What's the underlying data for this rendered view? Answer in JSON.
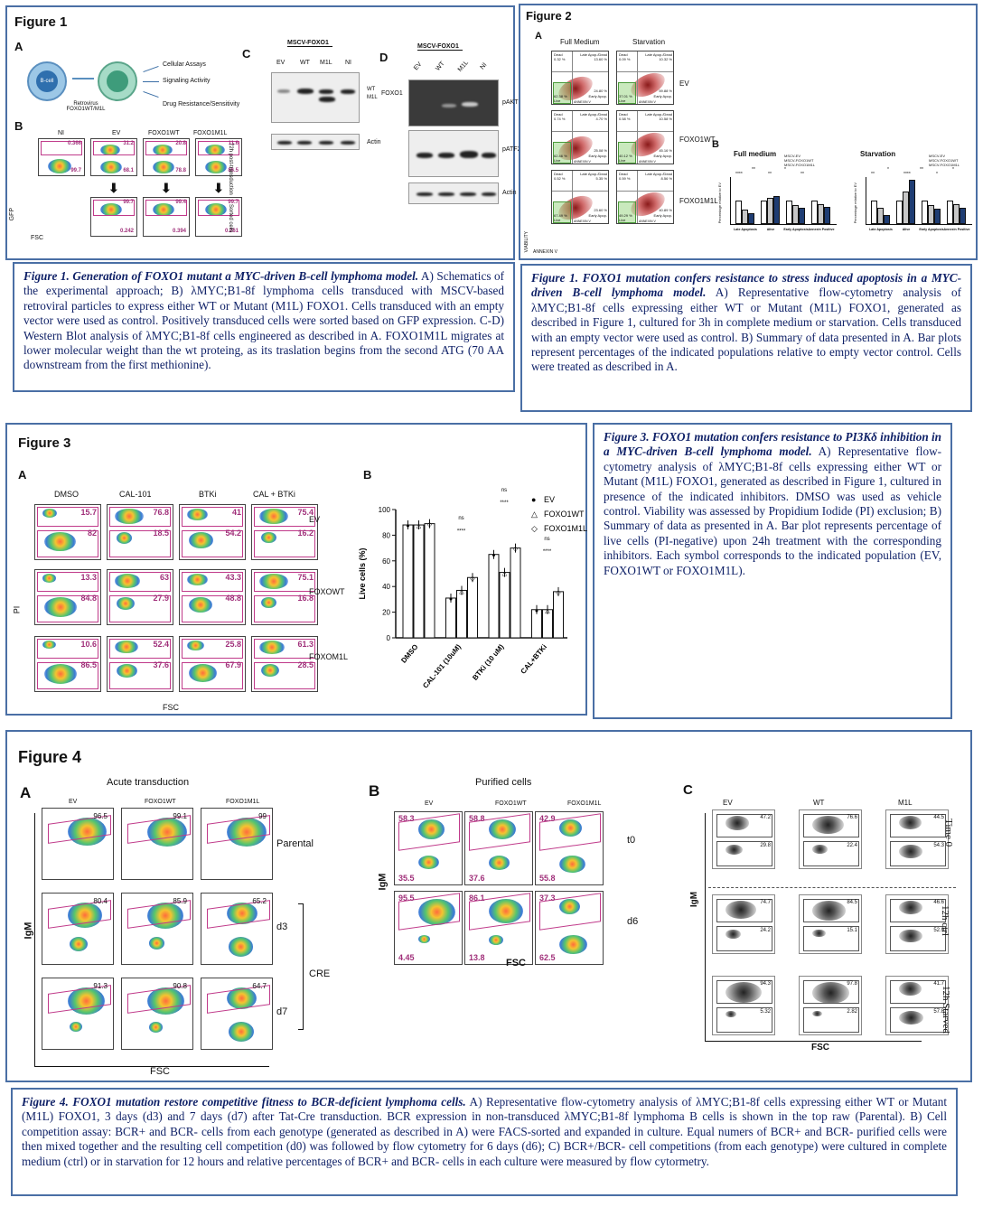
{
  "fig1": {
    "title": "Figure 1",
    "panelA": "A",
    "panelB": "B",
    "panelC": "C",
    "panelD": "D",
    "bcell": "B-cell",
    "retro": "Retrovirus FOXO1WT/M1L",
    "outcomes": [
      "Cellular Assays",
      "Signaling Activity",
      "Drug Resistance/Sensitivity"
    ],
    "cols": [
      "NI",
      "EV",
      "FOXO1WT",
      "FOXO1M1L"
    ],
    "side1": "72h post-transduction",
    "side2": "Sorted cells",
    "gfp": "GFP",
    "fsc": "FSC",
    "top_pcts": [
      "0.366",
      "31.2",
      "20.8",
      "11.6"
    ],
    "bot_pcts": [
      "99.7",
      "68.1",
      "78.8",
      "86.5"
    ],
    "sort_pcts": [
      "99.7",
      "99.4",
      "99.7"
    ],
    "sort_low": [
      "0.242",
      "0.394",
      "0.261"
    ],
    "blotC_header": "MSCV-FOXO1",
    "blotC_lanes": [
      "EV",
      "WT",
      "M1L",
      "NI"
    ],
    "blotC_labels": [
      "WT",
      "M1L",
      "FOXO1",
      "Actin"
    ],
    "blotD_header": "MSCV-FOXO1",
    "blotD_lanes": [
      "EV",
      "WT",
      "M1L",
      "NI"
    ],
    "blotD_labels": [
      "pAKT",
      "pATF2",
      "Actin"
    ]
  },
  "fig1cap": {
    "bold": "Figure 1. Generation of FOXO1 mutant a MYC-driven B-cell lymphoma model.",
    "text": " A) Schematics of the experimental approach; B) λMYC;B1-8f lymphoma cells transduced with MSCV-based retroviral particles to express either WT or Mutant (M1L) FOXO1. Cells transduced with an empty vector were used as control. Positively transduced cells were sorted based on GFP expression. C-D) Western Blot analysis of λMYC;B1-8f cells engineered as described in A. FOXO1M1L migrates at lower molecular weight than the wt proteing, as its traslation begins from the second ATG (70 AA downstream from the first methionine)."
  },
  "fig2": {
    "title": "Figure 2",
    "panelA": "A",
    "panelB": "B",
    "cond": [
      "Full Medium",
      "Starvation"
    ],
    "rows": [
      "EV",
      "FOXO1WT",
      "FOXO1M1L"
    ],
    "quad": [
      "Dead",
      "Late Apop./Dead",
      "Live",
      "Early Apop."
    ],
    "axes": [
      "VIABILITY",
      "ANNEXIN V"
    ],
    "vals_full": [
      [
        "0.32 %",
        "13.60 %",
        "62.38 %",
        "24.80 %"
      ],
      [
        "0.74 %",
        "4.70 %",
        "62.46 %",
        "25.08 %"
      ],
      [
        "0.52 %",
        "5.35 %",
        "67.49 %",
        "23.60 %"
      ]
    ],
    "vals_starv": [
      [
        "0.09 %",
        "10.32 %",
        "37.01 %",
        "59.88 %"
      ],
      [
        "0.58 %",
        "10.58 %",
        "40.12 %",
        "45.16 %"
      ],
      [
        "0.59 %",
        "8.56 %",
        "49.29 %",
        "40.89 %"
      ]
    ],
    "bar_titles": [
      "Full medium",
      "Starvation"
    ],
    "legend": [
      "MSCV-EV",
      "MSCV-FOXO1WT",
      "MSCV-FOXO1M1L"
    ],
    "ylabel": "Percentage relative to EV",
    "cats": [
      "Late Apoptosis",
      "Alive",
      "Early Apoptosis",
      "Annexin Positive"
    ],
    "sig_full": [
      "****",
      "**",
      "**",
      "*",
      "**"
    ],
    "sig_starv": [
      "**",
      "*",
      "****",
      "**",
      "*",
      "*"
    ]
  },
  "fig2cap": {
    "bold": "Figure 1. FOXO1 mutation confers resistance to stress induced apoptosis in a MYC-driven B-cell lymphoma model.",
    "text": " A) Representative flow-cytometry analysis of λMYC;B1-8f cells expressing either WT or Mutant (M1L) FOXO1, generated as described in Figure 1, cultured for 3h in complete medium or starvation. Cells transduced with an empty vector were used as control. B) Summary of data presented in A. Bar plots represent percentages of the indicated populations relative to empty vector control. Cells were treated as described in A."
  },
  "fig3": {
    "title": "Figure 3",
    "panelA": "A",
    "panelB": "B",
    "cols": [
      "DMSO",
      "CAL-101",
      "BTKi",
      "CAL + BTKi"
    ],
    "rows": [
      "EV",
      "FOXOWT",
      "FOXOM1L"
    ],
    "pi": "PI",
    "fsc": "FSC",
    "top": [
      [
        "15.7",
        "76.8",
        "41",
        "75.4"
      ],
      [
        "13.3",
        "63",
        "43.3",
        "75.1"
      ],
      [
        "10.6",
        "52.4",
        "25.8",
        "61.3"
      ]
    ],
    "bot": [
      [
        "82",
        "18.5",
        "54.2",
        "16.2"
      ],
      [
        "84.8",
        "27.9",
        "48.8",
        "16.8"
      ],
      [
        "86.5",
        "37.6",
        "67.9",
        "28.5"
      ]
    ]
  },
  "chart_data": {
    "type": "bar",
    "title": "",
    "xlabel": "",
    "ylabel": "Live cells (%)",
    "ylim": [
      0,
      100
    ],
    "yticks": [
      "0",
      "20",
      "40",
      "60",
      "80",
      "100"
    ],
    "categories": [
      "DMSO",
      "CAL-101 (10uM)",
      "BTKi (10 uM)",
      "CAL+BTKi"
    ],
    "series": [
      {
        "name": "EV",
        "values": [
          88,
          31,
          65,
          22
        ]
      },
      {
        "name": "FOXO1WT",
        "values": [
          88,
          37,
          51,
          22
        ]
      },
      {
        "name": "FOXO1M1L",
        "values": [
          89,
          47,
          70,
          36
        ]
      }
    ],
    "sig": [
      "ns",
      "****",
      "ns",
      "****",
      "ns",
      "****"
    ]
  },
  "fig3cap": {
    "bold": "Figure 3. FOXO1 mutation confers resistance to PI3Kδ inhibition in a MYC-driven B-cell lymphoma model.",
    "text": " A) Representative flow-cytometry analysis of λMYC;B1-8f cells expressing either WT or Mutant (M1L) FOXO1, generated as described in Figure 1, cultured in presence of the indicated inhibitors. DMSO was used as vehicle control. Viability was assessed by Propidium Iodide (PI) exclusion; B) Summary of data as presented in A. Bar plot represents percentage of live cells (PI-negative) upon 24h treatment with the corresponding inhibitors. Each symbol corresponds to the indicated population (EV, FOXO1WT or FOXO1M1L)."
  },
  "fig4": {
    "title": "Figure 4",
    "panelA": "A",
    "panelB": "B",
    "panelC": "C",
    "a_title": "Acute transduction",
    "b_title": "Purified cells",
    "cols": [
      "EV",
      "FOXO1WT",
      "FOXO1M1L"
    ],
    "c_cols": [
      "EV",
      "WT",
      "M1L"
    ],
    "igm": "IgM",
    "fsc": "FSC",
    "a_rows": [
      "Parental",
      "d3",
      "d7"
    ],
    "cre": "CRE",
    "a_vals": [
      [
        "96.5",
        "99.1",
        "99"
      ],
      [
        "80.4",
        "85.9",
        "65.2"
      ],
      [
        "91.3",
        "90.8",
        "64.7"
      ]
    ],
    "b_rows": [
      "t0",
      "d6"
    ],
    "b_top": [
      [
        "58.3",
        "58.8",
        "42.9"
      ],
      [
        "95.5",
        "86.1",
        "37.3"
      ]
    ],
    "b_bot": [
      [
        "35.5",
        "37.6",
        "55.8"
      ],
      [
        "4.45",
        "13.8",
        "62.5"
      ]
    ],
    "c_rows": [
      "Time 0",
      "12h ctrl",
      "12h Starved"
    ],
    "c_top": [
      [
        "47.2",
        "76.6",
        "44.5"
      ],
      [
        "74.7",
        "84.5",
        "46.6"
      ],
      [
        "94.3",
        "97.8",
        "41.7"
      ]
    ],
    "c_bot": [
      [
        "29.8",
        "22.4",
        "54.3"
      ],
      [
        "24.2",
        "15.1",
        "52.9"
      ],
      [
        "5.32",
        "2.82",
        "57.8"
      ]
    ]
  },
  "fig4cap": {
    "bold": "Figure 4. FOXO1 mutation restore competitive fitness to BCR-deficient lymphoma cells.",
    "text": " A) Representative flow-cytometry analysis of λMYC;B1-8f cells expressing either WT or Mutant (M1L) FOXO1, 3 days (d3) and 7 days (d7) after Tat-Cre transduction. BCR expression in non-transduced λMYC;B1-8f lymphoma B cells is shown in the top raw (Parental). B) Cell competition assay: BCR+ and BCR- cells from each genotype (generated as described in A) were FACS-sorted and expanded in culture. Equal numers of BCR+ and BCR- purified cells were then mixed together and the resulting cell competition (d0) was followed by flow cytometry for 6 days (d6); C) BCR+/BCR- cell competitions (from each genotype) were cultured in complete medium (ctrl) or in starvation for 12 hours and relative percentages of BCR+ and BCR- cells in each culture were measured by flow cytormetry."
  }
}
